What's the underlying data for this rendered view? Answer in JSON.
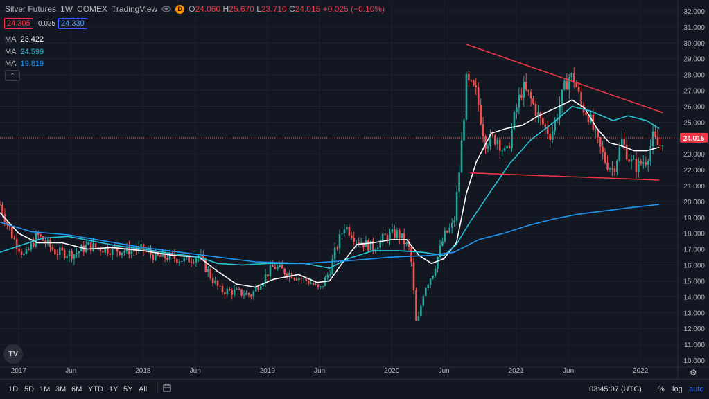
{
  "header": {
    "symbol": "Silver Futures",
    "interval": "1W",
    "exchange": "COMEX",
    "source": "TradingView",
    "badge": "D",
    "open_label": "O",
    "open": "24.060",
    "high_label": "H",
    "high": "25.670",
    "low_label": "L",
    "low": "23.710",
    "close_label": "C",
    "close": "24.015",
    "change": "+0.025 (+0.10%)"
  },
  "quote": {
    "bid": "24.305",
    "spread": "0.025",
    "ask": "24.330"
  },
  "indicators": [
    {
      "label": "MA",
      "value": "23.422",
      "color": "#ffffff"
    },
    {
      "label": "MA",
      "value": "24.599",
      "color": "#26c6da"
    },
    {
      "label": "MA",
      "value": "19.819",
      "color": "#2196f3"
    }
  ],
  "collapse_icon": "chevron-up-icon",
  "logo": "TV",
  "current_price_label": "24.015",
  "time_ranges": [
    "1D",
    "5D",
    "1M",
    "3M",
    "6M",
    "YTD",
    "1Y",
    "5Y",
    "All"
  ],
  "time_display": "03:45:07 (UTC)",
  "scale_options": {
    "percent": "%",
    "log": "log",
    "auto": "auto"
  },
  "colors": {
    "up": "#26a69a",
    "down": "#ef5350",
    "trendline": "#f23645",
    "background": "#131722",
    "accent": "#2962ff"
  },
  "chart_data": {
    "type": "candlestick",
    "interval": "weekly",
    "ylim": [
      10,
      32
    ],
    "y_ticks": [
      "32.000",
      "31.000",
      "30.000",
      "29.000",
      "28.000",
      "27.000",
      "26.000",
      "25.000",
      "24.000",
      "23.000",
      "22.000",
      "21.000",
      "20.000",
      "19.000",
      "18.000",
      "17.000",
      "16.000",
      "15.000",
      "14.000",
      "13.000",
      "12.000",
      "11.000",
      "10.000"
    ],
    "x_ticks": [
      "2017",
      "Jun",
      "2018",
      "Jun",
      "2019",
      "Jun",
      "2020",
      "Jun",
      "2021",
      "Jun",
      "2022"
    ],
    "x_tick_times": [
      2017.0,
      2017.42,
      2018.0,
      2018.42,
      2019.0,
      2019.42,
      2020.0,
      2020.42,
      2021.0,
      2021.42,
      2022.0
    ],
    "x_range": [
      2016.85,
      2022.3
    ],
    "price_series": [
      [
        2016.85,
        19.8
      ],
      [
        2016.95,
        17.8
      ],
      [
        2017.05,
        16.5
      ],
      [
        2017.15,
        17.9
      ],
      [
        2017.3,
        16.8
      ],
      [
        2017.45,
        16.7
      ],
      [
        2017.55,
        17.2
      ],
      [
        2017.7,
        17.0
      ],
      [
        2017.85,
        16.9
      ],
      [
        2018.0,
        17.0
      ],
      [
        2018.1,
        16.5
      ],
      [
        2018.2,
        16.5
      ],
      [
        2018.35,
        16.3
      ],
      [
        2018.45,
        16.6
      ],
      [
        2018.55,
        15.2
      ],
      [
        2018.62,
        14.4
      ],
      [
        2018.75,
        14.3
      ],
      [
        2018.87,
        14.1
      ],
      [
        2018.95,
        15.0
      ],
      [
        2019.05,
        15.9
      ],
      [
        2019.2,
        15.4
      ],
      [
        2019.35,
        14.9
      ],
      [
        2019.42,
        14.4
      ],
      [
        2019.5,
        15.6
      ],
      [
        2019.55,
        17.0
      ],
      [
        2019.62,
        18.5
      ],
      [
        2019.72,
        17.6
      ],
      [
        2019.85,
        17.1
      ],
      [
        2019.95,
        17.8
      ],
      [
        2020.05,
        18.0
      ],
      [
        2020.15,
        16.9
      ],
      [
        2020.2,
        12.0
      ],
      [
        2020.26,
        14.5
      ],
      [
        2020.33,
        15.5
      ],
      [
        2020.42,
        17.8
      ],
      [
        2020.5,
        18.6
      ],
      [
        2020.55,
        22.5
      ],
      [
        2020.6,
        27.5
      ],
      [
        2020.68,
        26.8
      ],
      [
        2020.75,
        23.8
      ],
      [
        2020.85,
        24.0
      ],
      [
        2020.92,
        22.8
      ],
      [
        2021.0,
        25.8
      ],
      [
        2021.05,
        27.2
      ],
      [
        2021.12,
        26.4
      ],
      [
        2021.2,
        25.0
      ],
      [
        2021.28,
        24.2
      ],
      [
        2021.35,
        26.1
      ],
      [
        2021.42,
        27.9
      ],
      [
        2021.47,
        27.7
      ],
      [
        2021.52,
        26.1
      ],
      [
        2021.58,
        25.5
      ],
      [
        2021.65,
        23.8
      ],
      [
        2021.72,
        22.5
      ],
      [
        2021.78,
        22.0
      ],
      [
        2021.85,
        23.8
      ],
      [
        2021.92,
        22.5
      ],
      [
        2021.97,
        22.2
      ],
      [
        2022.05,
        22.7
      ],
      [
        2022.1,
        24.0
      ],
      [
        2022.15,
        23.4
      ],
      [
        2022.18,
        24.015
      ]
    ],
    "moving_averages": [
      {
        "label": "MA",
        "value": "23.422",
        "color": "#ffffff",
        "points": [
          [
            2016.85,
            19.3
          ],
          [
            2017.0,
            18.0
          ],
          [
            2017.15,
            17.4
          ],
          [
            2017.35,
            17.4
          ],
          [
            2017.55,
            17.0
          ],
          [
            2017.75,
            17.1
          ],
          [
            2018.0,
            16.9
          ],
          [
            2018.25,
            16.6
          ],
          [
            2018.45,
            16.5
          ],
          [
            2018.6,
            15.6
          ],
          [
            2018.75,
            14.8
          ],
          [
            2018.9,
            14.6
          ],
          [
            2019.05,
            15.1
          ],
          [
            2019.25,
            15.4
          ],
          [
            2019.4,
            14.9
          ],
          [
            2019.5,
            15.0
          ],
          [
            2019.6,
            16.1
          ],
          [
            2019.72,
            17.3
          ],
          [
            2019.85,
            17.4
          ],
          [
            2020.0,
            17.6
          ],
          [
            2020.12,
            17.6
          ],
          [
            2020.22,
            16.6
          ],
          [
            2020.32,
            16.1
          ],
          [
            2020.42,
            16.4
          ],
          [
            2020.52,
            17.4
          ],
          [
            2020.6,
            20.5
          ],
          [
            2020.68,
            22.5
          ],
          [
            2020.8,
            24.3
          ],
          [
            2020.92,
            24.6
          ],
          [
            2021.05,
            24.8
          ],
          [
            2021.18,
            25.4
          ],
          [
            2021.32,
            25.9
          ],
          [
            2021.45,
            26.4
          ],
          [
            2021.55,
            25.9
          ],
          [
            2021.65,
            24.6
          ],
          [
            2021.75,
            23.7
          ],
          [
            2021.85,
            23.5
          ],
          [
            2021.95,
            23.2
          ],
          [
            2022.05,
            23.2
          ],
          [
            2022.15,
            23.422
          ]
        ]
      },
      {
        "label": "MA",
        "value": "24.599",
        "color": "#26c6da",
        "points": [
          [
            2016.85,
            16.8
          ],
          [
            2017.0,
            17.2
          ],
          [
            2017.2,
            17.7
          ],
          [
            2017.4,
            17.8
          ],
          [
            2017.6,
            17.5
          ],
          [
            2017.8,
            17.2
          ],
          [
            2018.0,
            17.0
          ],
          [
            2018.25,
            16.7
          ],
          [
            2018.45,
            16.5
          ],
          [
            2018.6,
            16.1
          ],
          [
            2018.8,
            16.0
          ],
          [
            2019.0,
            16.1
          ],
          [
            2019.3,
            16.1
          ],
          [
            2019.5,
            15.8
          ],
          [
            2019.65,
            16.4
          ],
          [
            2019.85,
            16.9
          ],
          [
            2020.05,
            16.9
          ],
          [
            2020.25,
            16.8
          ],
          [
            2020.42,
            16.6
          ],
          [
            2020.52,
            17.3
          ],
          [
            2020.62,
            18.6
          ],
          [
            2020.8,
            20.7
          ],
          [
            2020.95,
            22.4
          ],
          [
            2021.12,
            23.9
          ],
          [
            2021.32,
            25.1
          ],
          [
            2021.45,
            26.0
          ],
          [
            2021.6,
            25.7
          ],
          [
            2021.78,
            25.1
          ],
          [
            2021.9,
            25.4
          ],
          [
            2022.05,
            25.1
          ],
          [
            2022.15,
            24.599
          ]
        ]
      },
      {
        "label": "MA",
        "value": "19.819",
        "color": "#2196f3",
        "points": [
          [
            2016.85,
            18.7
          ],
          [
            2017.1,
            18.1
          ],
          [
            2017.4,
            17.9
          ],
          [
            2017.7,
            17.5
          ],
          [
            2018.0,
            17.1
          ],
          [
            2018.3,
            16.8
          ],
          [
            2018.6,
            16.5
          ],
          [
            2018.9,
            16.2
          ],
          [
            2019.3,
            16.1
          ],
          [
            2019.7,
            16.3
          ],
          [
            2020.0,
            16.5
          ],
          [
            2020.3,
            16.6
          ],
          [
            2020.5,
            16.8
          ],
          [
            2020.7,
            17.6
          ],
          [
            2020.9,
            18.0
          ],
          [
            2021.1,
            18.5
          ],
          [
            2021.3,
            18.9
          ],
          [
            2021.5,
            19.2
          ],
          [
            2021.7,
            19.4
          ],
          [
            2021.9,
            19.6
          ],
          [
            2022.15,
            19.819
          ]
        ]
      }
    ],
    "trendlines": [
      {
        "color": "#f23645",
        "from": [
          2020.6,
          29.9
        ],
        "to": [
          2022.18,
          25.6
        ]
      },
      {
        "color": "#f23645",
        "from": [
          2020.63,
          21.8
        ],
        "to": [
          2022.15,
          21.35
        ]
      }
    ],
    "last_price": 24.015
  }
}
